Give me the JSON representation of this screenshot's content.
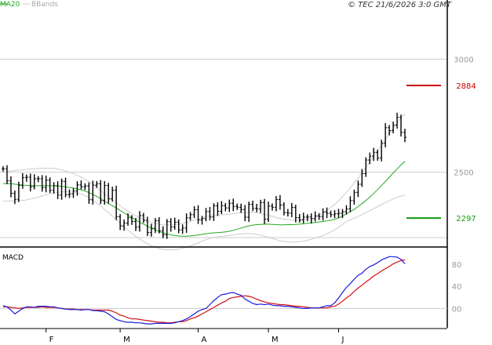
{
  "header": {
    "ma_legend": "MA20",
    "bb_legend": "BBands",
    "copyright": "© TEC 21/6/2026 3:0 GMT"
  },
  "colors": {
    "ma": "#22aa22",
    "bbands": "#cccccc",
    "candles": "#000000",
    "macd_line": "#1a1adc",
    "signal_line": "#d01010",
    "resistance": "#cc0000",
    "support": "#119911",
    "grid": "#cccccc",
    "axis_text": "#999999"
  },
  "chart_data": [
    {
      "type": "candlestick",
      "title": "",
      "ylim": [
        2190,
        3210
      ],
      "y_ticks": [
        {
          "value": 3000,
          "label": "3000"
        },
        {
          "value": 2500,
          "label": "2500"
        }
      ],
      "x_labels": [
        {
          "index": 11,
          "label": "F"
        },
        {
          "index": 30,
          "label": "M"
        },
        {
          "index": 50,
          "label": "A"
        },
        {
          "index": 68,
          "label": "M"
        },
        {
          "index": 86,
          "label": "J"
        }
      ],
      "levels": [
        {
          "name": "resistance",
          "value": 2884,
          "label": "2884"
        },
        {
          "name": "support",
          "value": 2297,
          "label": "2297"
        }
      ],
      "bollinger_gap": 30,
      "series": [
        {
          "name": "MA20",
          "values": [
            2450,
            2450,
            2449,
            2447,
            2445,
            2443,
            2442,
            2441,
            2440,
            2440,
            2440,
            2440,
            2440,
            2440,
            2439,
            2437,
            2435,
            2433,
            2430,
            2426,
            2422,
            2417,
            2410,
            2402,
            2393,
            2383,
            2372,
            2362,
            2352,
            2342,
            2331,
            2320,
            2310,
            2299,
            2289,
            2279,
            2270,
            2261,
            2253,
            2245,
            2238,
            2232,
            2227,
            2223,
            2220,
            2218,
            2217,
            2217,
            2218,
            2220,
            2222,
            2225,
            2228,
            2230,
            2232,
            2233,
            2234,
            2236,
            2239,
            2243,
            2248,
            2253,
            2258,
            2263,
            2266,
            2268,
            2269,
            2270,
            2270,
            2269,
            2268,
            2267,
            2267,
            2268,
            2268,
            2269,
            2270,
            2272,
            2274,
            2276,
            2278,
            2280,
            2282,
            2285,
            2288,
            2292,
            2298,
            2306,
            2315,
            2325,
            2336,
            2348,
            2361,
            2375,
            2390,
            2406,
            2423,
            2441,
            2459,
            2478,
            2497,
            2515,
            2532,
            2548
          ]
        },
        {
          "name": "candles",
          "values": [
            2515,
            2462,
            2407,
            2380,
            2442,
            2476,
            2478,
            2436,
            2471,
            2471,
            2432,
            2465,
            2420,
            2440,
            2399,
            2460,
            2401,
            2404,
            2417,
            2444,
            2436,
            2439,
            2378,
            2443,
            2449,
            2374,
            2441,
            2382,
            2420,
            2303,
            2262,
            2275,
            2298,
            2282,
            2258,
            2308,
            2287,
            2233,
            2252,
            2285,
            2241,
            2223,
            2281,
            2258,
            2279,
            2245,
            2253,
            2298,
            2312,
            2334,
            2289,
            2295,
            2326,
            2302,
            2351,
            2327,
            2352,
            2342,
            2363,
            2349,
            2345,
            2335,
            2301,
            2358,
            2340,
            2338,
            2366,
            2292,
            2350,
            2345,
            2379,
            2355,
            2321,
            2319,
            2344,
            2299,
            2289,
            2301,
            2302,
            2294,
            2307,
            2304,
            2324,
            2318,
            2312,
            2316,
            2318,
            2325,
            2338,
            2374,
            2411,
            2447,
            2494,
            2554,
            2571,
            2588,
            2563,
            2628,
            2697,
            2684,
            2708,
            2743,
            2676,
            2654
          ]
        }
      ]
    },
    {
      "type": "line",
      "title": "MACD",
      "ylim": [
        -35,
        110
      ],
      "y_ticks": [
        {
          "value": 80,
          "label": "80"
        },
        {
          "value": 40,
          "label": "40"
        },
        {
          "value": 0,
          "label": "00"
        }
      ],
      "series": [
        {
          "name": "MACD",
          "values": [
            5,
            3,
            -3,
            -10,
            -5,
            0,
            3,
            3,
            2,
            4,
            4,
            4,
            3,
            3,
            1,
            0,
            -1,
            -2,
            -2,
            -2,
            -3,
            -2,
            -2,
            -4,
            -4,
            -5,
            -6,
            -10,
            -15,
            -20,
            -22,
            -24,
            -25,
            -25,
            -26,
            -26,
            -27,
            -28,
            -28,
            -27,
            -27,
            -27,
            -27,
            -27,
            -26,
            -24,
            -22,
            -19,
            -15,
            -10,
            -5,
            -2,
            0,
            7,
            14,
            20,
            25,
            26,
            28,
            29,
            26,
            24,
            17,
            13,
            9,
            7,
            8,
            7,
            8,
            6,
            5,
            5,
            4,
            4,
            3,
            2,
            1,
            0,
            0,
            1,
            1,
            1,
            3,
            5,
            5,
            10,
            19,
            29,
            38,
            45,
            53,
            60,
            64,
            71,
            76,
            79,
            83,
            88,
            91,
            94,
            94,
            93,
            89,
            81
          ]
        },
        {
          "name": "Signal",
          "values": [
            3,
            3,
            2,
            1,
            0,
            1,
            2,
            2,
            2,
            2,
            3,
            2,
            2,
            2,
            1,
            0,
            -1,
            -1,
            -1,
            -2,
            -2,
            -2,
            -2,
            -3,
            -3,
            -3,
            -3,
            -3,
            -5,
            -8,
            -12,
            -14,
            -17,
            -19,
            -19,
            -20,
            -21,
            -22,
            -23,
            -24,
            -25,
            -25,
            -26,
            -26,
            -25,
            -24,
            -24,
            -22,
            -19,
            -17,
            -14,
            -10,
            -6,
            -2,
            2,
            6,
            10,
            13,
            18,
            20,
            21,
            22,
            23,
            22,
            20,
            17,
            14,
            12,
            10,
            9,
            8,
            7,
            7,
            6,
            5,
            4,
            4,
            3,
            2,
            1,
            1,
            1,
            1,
            1,
            3,
            4,
            8,
            13,
            19,
            24,
            31,
            37,
            42,
            48,
            53,
            59,
            63,
            68,
            72,
            76,
            81,
            84,
            87,
            88
          ]
        }
      ]
    }
  ]
}
